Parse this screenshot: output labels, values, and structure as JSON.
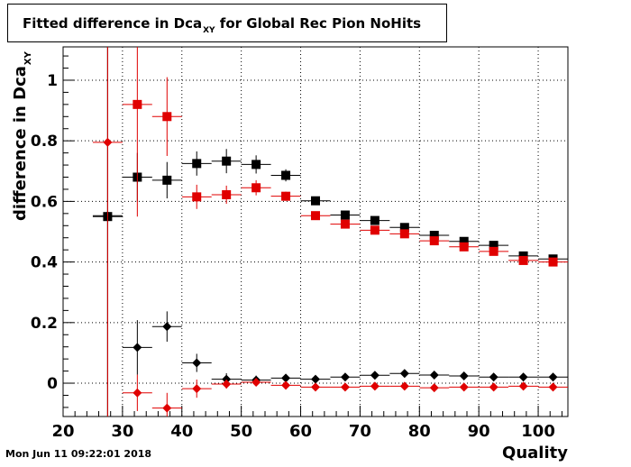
{
  "title": {
    "main": "Fitted difference in Dca",
    "sub": "XY",
    "rest": " for Global Rec Pion NoHits"
  },
  "timestamp": "Mon Jun 11 09:22:01 2018",
  "axes": {
    "xlabel": "Quality",
    "ylabel_main": "difference in Dca",
    "ylabel_sub": "XY"
  },
  "colors": {
    "black": "#000000",
    "red": "#e00000",
    "grid": "#000000"
  },
  "chart_data": {
    "type": "scatter",
    "xlim": [
      20,
      105
    ],
    "ylim": [
      -0.11,
      1.11
    ],
    "x_ticks": [
      20,
      30,
      40,
      50,
      60,
      70,
      80,
      90,
      100
    ],
    "y_ticks": [
      0,
      0.2,
      0.4,
      0.6,
      0.8,
      1
    ],
    "y_tick_labels": [
      "0",
      "0.2",
      "0.4",
      "0.6",
      "0.8",
      "1"
    ],
    "grid": true,
    "x_bin_halfwidth": 2.5,
    "series": [
      {
        "marker": "square",
        "color": "#000000",
        "points": [
          {
            "x": 27.5,
            "y": 0.55,
            "ey": 1.0
          },
          {
            "x": 32.5,
            "y": 0.68,
            "ey": 0.08
          },
          {
            "x": 37.5,
            "y": 0.67,
            "ey": 0.06
          },
          {
            "x": 42.5,
            "y": 0.725,
            "ey": 0.04
          },
          {
            "x": 47.5,
            "y": 0.733,
            "ey": 0.04
          },
          {
            "x": 52.5,
            "y": 0.722,
            "ey": 0.03
          },
          {
            "x": 57.5,
            "y": 0.686,
            "ey": 0.02
          },
          {
            "x": 62.5,
            "y": 0.602,
            "ey": 0.01
          },
          {
            "x": 67.5,
            "y": 0.555,
            "ey": 0.01
          },
          {
            "x": 72.5,
            "y": 0.537,
            "ey": 0.01
          },
          {
            "x": 77.5,
            "y": 0.514,
            "ey": 0.01
          },
          {
            "x": 82.5,
            "y": 0.488,
            "ey": 0.01
          },
          {
            "x": 87.5,
            "y": 0.468,
            "ey": 0.01
          },
          {
            "x": 92.5,
            "y": 0.455,
            "ey": 0.01
          },
          {
            "x": 97.5,
            "y": 0.42,
            "ey": 0.01
          },
          {
            "x": 102.5,
            "y": 0.41,
            "ey": 0.01
          }
        ]
      },
      {
        "marker": "square",
        "color": "#e00000",
        "points": [
          {
            "x": 32.5,
            "y": 0.92,
            "ey": 0.37
          },
          {
            "x": 37.5,
            "y": 0.88,
            "ey": 0.13
          },
          {
            "x": 42.5,
            "y": 0.615,
            "ey": 0.04
          },
          {
            "x": 47.5,
            "y": 0.622,
            "ey": 0.03
          },
          {
            "x": 52.5,
            "y": 0.645,
            "ey": 0.025
          },
          {
            "x": 57.5,
            "y": 0.617,
            "ey": 0.015
          },
          {
            "x": 62.5,
            "y": 0.553,
            "ey": 0.01
          },
          {
            "x": 67.5,
            "y": 0.525,
            "ey": 0.01
          },
          {
            "x": 72.5,
            "y": 0.505,
            "ey": 0.01
          },
          {
            "x": 77.5,
            "y": 0.493,
            "ey": 0.01
          },
          {
            "x": 82.5,
            "y": 0.47,
            "ey": 0.01
          },
          {
            "x": 87.5,
            "y": 0.45,
            "ey": 0.01
          },
          {
            "x": 92.5,
            "y": 0.435,
            "ey": 0.01
          },
          {
            "x": 97.5,
            "y": 0.405,
            "ey": 0.01
          },
          {
            "x": 102.5,
            "y": 0.4,
            "ey": 0.01
          }
        ]
      },
      {
        "marker": "diamond",
        "color": "#000000",
        "points": [
          {
            "x": 27.5,
            "y": 0.553,
            "ey": 1.0
          },
          {
            "x": 32.5,
            "y": 0.118,
            "ey": 0.09
          },
          {
            "x": 37.5,
            "y": 0.187,
            "ey": 0.05
          },
          {
            "x": 42.5,
            "y": 0.067,
            "ey": 0.03
          },
          {
            "x": 47.5,
            "y": 0.013,
            "ey": 0.02
          },
          {
            "x": 52.5,
            "y": 0.01,
            "ey": 0.015
          },
          {
            "x": 57.5,
            "y": 0.017,
            "ey": 0.01
          },
          {
            "x": 62.5,
            "y": 0.013,
            "ey": 0.01
          },
          {
            "x": 67.5,
            "y": 0.02,
            "ey": 0.008
          },
          {
            "x": 72.5,
            "y": 0.026,
            "ey": 0.008
          },
          {
            "x": 77.5,
            "y": 0.032,
            "ey": 0.008
          },
          {
            "x": 82.5,
            "y": 0.027,
            "ey": 0.008
          },
          {
            "x": 87.5,
            "y": 0.024,
            "ey": 0.008
          },
          {
            "x": 92.5,
            "y": 0.02,
            "ey": 0.008
          },
          {
            "x": 97.5,
            "y": 0.02,
            "ey": 0.008
          },
          {
            "x": 102.5,
            "y": 0.02,
            "ey": 0.008
          }
        ]
      },
      {
        "marker": "diamond",
        "color": "#e00000",
        "points": [
          {
            "x": 27.5,
            "y": 0.795,
            "ey": 1.0
          },
          {
            "x": 32.5,
            "y": -0.032,
            "ey": 0.06
          },
          {
            "x": 37.5,
            "y": -0.082,
            "ey": 0.05
          },
          {
            "x": 42.5,
            "y": -0.018,
            "ey": 0.03
          },
          {
            "x": 47.5,
            "y": -0.003,
            "ey": 0.015
          },
          {
            "x": 52.5,
            "y": 0.003,
            "ey": 0.012
          },
          {
            "x": 57.5,
            "y": -0.007,
            "ey": 0.01
          },
          {
            "x": 62.5,
            "y": -0.013,
            "ey": 0.008
          },
          {
            "x": 67.5,
            "y": -0.013,
            "ey": 0.008
          },
          {
            "x": 72.5,
            "y": -0.01,
            "ey": 0.008
          },
          {
            "x": 77.5,
            "y": -0.01,
            "ey": 0.008
          },
          {
            "x": 82.5,
            "y": -0.015,
            "ey": 0.008
          },
          {
            "x": 87.5,
            "y": -0.013,
            "ey": 0.008
          },
          {
            "x": 92.5,
            "y": -0.013,
            "ey": 0.008
          },
          {
            "x": 97.5,
            "y": -0.01,
            "ey": 0.008
          },
          {
            "x": 102.5,
            "y": -0.013,
            "ey": 0.008
          }
        ]
      }
    ]
  }
}
